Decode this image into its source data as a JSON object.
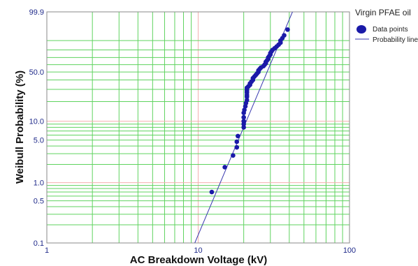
{
  "chart_data": {
    "type": "scatter",
    "title": "",
    "xlabel": "AC Breakdown Voltage (kV)",
    "ylabel": "Weibull Probability (%)",
    "x_scale": "log",
    "y_scale": "weibull",
    "xlim": [
      1,
      100
    ],
    "ylim": [
      0.1,
      99.9
    ],
    "x_tick_labels": [
      "1",
      "10",
      "100"
    ],
    "y_tick_labels": [
      "0.1",
      "0.5",
      "1.0",
      "5.0",
      "10.0",
      "50.0",
      "99.9"
    ],
    "grid": true,
    "legend": {
      "title": "Virgin PFAE oil",
      "position": "top-right",
      "entries": [
        "Data points",
        "Probability line"
      ]
    },
    "series": [
      {
        "name": "Data points",
        "marker": "circle",
        "color": "#1a1aa8",
        "x": [
          12.3,
          15.0,
          17.0,
          18.0,
          18.0,
          18.3,
          20.0,
          20.0,
          20.0,
          20.0,
          20.0,
          20.2,
          20.5,
          20.7,
          21.0,
          21.0,
          21.0,
          21.0,
          21.0,
          21.0,
          21.0,
          21.5,
          22.0,
          22.0,
          22.5,
          23.0,
          23.0,
          23.5,
          24.0,
          24.5,
          25.0,
          25.0,
          25.5,
          26.0,
          27.0,
          27.5,
          28.0,
          28.0,
          28.5,
          29.0,
          29.0,
          29.5,
          30.0,
          30.0,
          30.5,
          31.0,
          32.0,
          33.0,
          34.0,
          35.0,
          35.0,
          36.0,
          37.0,
          39.0
        ],
        "y": [
          0.7,
          1.8,
          2.8,
          3.8,
          4.7,
          5.8,
          8.0,
          9.0,
          10.0,
          11.5,
          13.5,
          15.0,
          17.0,
          19.0,
          21.0,
          23.5,
          25.0,
          27.0,
          28.5,
          30.0,
          31.5,
          33.0,
          34.5,
          36.0,
          38.0,
          40.0,
          42.0,
          44.0,
          46.0,
          48.0,
          50.0,
          52.0,
          54.0,
          56.0,
          58.0,
          60.0,
          62.0,
          64.0,
          66.0,
          68.0,
          70.0,
          72.0,
          74.0,
          76.0,
          78.0,
          80.0,
          82.0,
          84.0,
          86.0,
          88.0,
          90.0,
          92.0,
          94.0,
          97.0
        ]
      },
      {
        "name": "Probability line",
        "type": "line",
        "color": "#3a3ab0",
        "x": [
          9.5,
          42
        ],
        "y": [
          0.1,
          99.9
        ]
      }
    ]
  }
}
